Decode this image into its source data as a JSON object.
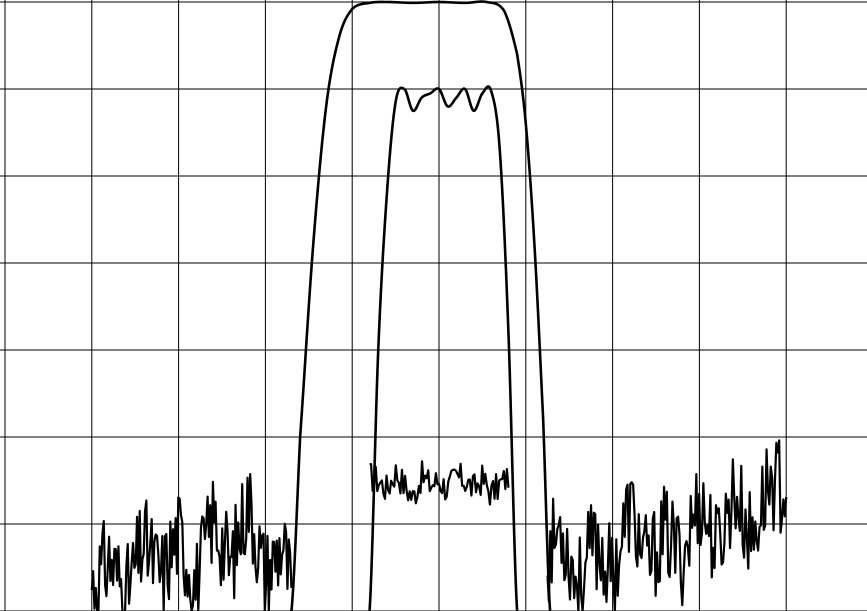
{
  "chart_data": {
    "type": "line",
    "title": "",
    "xlabel": "",
    "ylabel": "",
    "xlim": [
      0,
      10
    ],
    "ylim": [
      0,
      7
    ],
    "grid": true,
    "grid_divisions": {
      "x": 10,
      "y": 7
    },
    "line_color": "#000000",
    "grid_color": "#000000",
    "background": "#ffffff",
    "series": [
      {
        "x": [
          3.3,
          3.4,
          3.55,
          3.7,
          3.85,
          4.0,
          4.2,
          4.4,
          4.7,
          5.0,
          5.3,
          5.55,
          5.75,
          5.9,
          6.0,
          6.1,
          6.2,
          6.28
        ],
        "y": [
          0.0,
          2.0,
          4.2,
          5.8,
          6.6,
          6.92,
          6.99,
          7.0,
          6.99,
          7.0,
          6.99,
          7.0,
          6.9,
          6.4,
          5.6,
          4.2,
          2.2,
          0.0
        ]
      },
      {
        "x": [
          4.2,
          4.3,
          4.4,
          4.5,
          4.6,
          4.7,
          4.8,
          4.9,
          5.0,
          5.1,
          5.2,
          5.3,
          5.4,
          5.5,
          5.6,
          5.7,
          5.8,
          5.9
        ],
        "y": [
          0.0,
          3.0,
          4.8,
          5.85,
          6.0,
          5.75,
          5.9,
          5.95,
          6.0,
          5.8,
          5.9,
          6.0,
          5.75,
          5.95,
          5.98,
          5.3,
          3.2,
          0.0
        ]
      },
      {
        "x": [
          4.2,
          4.3,
          4.4,
          4.5,
          4.6,
          4.7,
          4.8,
          4.9,
          5.0,
          5.1,
          5.2,
          5.3,
          5.4,
          5.5,
          5.6,
          5.7,
          5.8
        ],
        "y": [
          1.55,
          1.5,
          1.4,
          1.6,
          1.45,
          1.3,
          1.55,
          1.45,
          1.5,
          1.4,
          1.55,
          1.5,
          1.4,
          1.52,
          1.35,
          1.45,
          1.55
        ]
      },
      {
        "x": [
          1.0,
          1.2,
          1.4,
          1.6,
          1.8,
          2.0,
          2.2,
          2.4,
          2.6,
          2.8,
          3.0,
          3.2,
          3.3
        ],
        "y": [
          0.3,
          0.6,
          0.2,
          0.8,
          0.4,
          0.9,
          0.3,
          1.1,
          0.5,
          1.3,
          0.4,
          0.8,
          0.2
        ]
      },
      {
        "x": [
          6.25,
          6.4,
          6.6,
          6.8,
          7.0,
          7.2,
          7.4,
          7.6,
          7.8,
          8.0,
          8.2,
          8.4,
          8.6,
          8.8,
          9.0
        ],
        "y": [
          0.6,
          1.0,
          0.3,
          0.8,
          0.4,
          1.2,
          0.5,
          0.9,
          0.6,
          1.3,
          0.7,
          1.4,
          0.8,
          1.5,
          1.4
        ]
      }
    ]
  }
}
